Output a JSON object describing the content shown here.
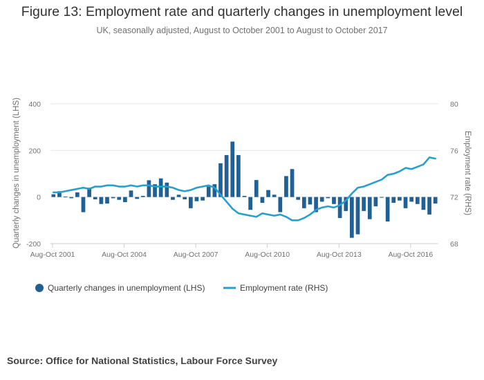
{
  "colors": {
    "bars": "#206095",
    "line": "#27a0cc",
    "grid": "#e6e6e6",
    "text": "#707071"
  },
  "chart_data": {
    "type": "bar+line",
    "title": "Figure 13: Employment rate and quarterly changes in unemployment level",
    "subtitle": "UK, seasonally adjusted, August to October 2001 to August to October 2017",
    "ylabel_left": "Quarterly changes in unemployment (LHS)",
    "ylabel_right": "Employment rate (RHS)",
    "ylim_left": [
      -200,
      400
    ],
    "ylim_right": [
      68,
      80
    ],
    "yticks_left": [
      "400",
      "200",
      "0",
      "-200"
    ],
    "yticks_right": [
      "80",
      "76",
      "72",
      "68"
    ],
    "xtick_labels": [
      "Aug-Oct 2001",
      "Aug-Oct 2004",
      "Aug-Oct 2007",
      "Aug-Oct 2010",
      "Aug-Oct 2013",
      "Aug-Oct 2016"
    ],
    "xtick_indices": [
      0,
      12,
      24,
      36,
      48,
      60
    ],
    "n_periods": 65,
    "series": [
      {
        "name": "Quarterly changes in unemployment (LHS)",
        "type": "bar",
        "values": [
          12,
          25,
          2,
          -5,
          20,
          -65,
          40,
          -10,
          -30,
          -28,
          -5,
          -12,
          -22,
          28,
          -8,
          5,
          72,
          55,
          80,
          62,
          -12,
          10,
          -10,
          -48,
          -18,
          -15,
          45,
          55,
          145,
          180,
          238,
          180,
          5,
          -55,
          73,
          -25,
          30,
          10,
          -65,
          90,
          120,
          -12,
          -48,
          -32,
          -65,
          -20,
          -5,
          -30,
          -90,
          -60,
          -175,
          -160,
          -60,
          -95,
          -40,
          0,
          -105,
          -25,
          -15,
          -48,
          -20,
          -30,
          -55,
          -75,
          -28
        ]
      },
      {
        "name": "Employment rate (RHS)",
        "type": "line",
        "values": [
          72.4,
          72.4,
          72.5,
          72.6,
          72.7,
          72.8,
          72.7,
          72.9,
          72.9,
          73.0,
          73.0,
          72.9,
          72.9,
          73.0,
          72.9,
          73.0,
          73.0,
          72.9,
          72.9,
          72.9,
          72.8,
          72.6,
          72.5,
          72.6,
          72.8,
          72.9,
          73.0,
          72.8,
          72.2,
          71.6,
          71.0,
          70.6,
          70.5,
          70.4,
          70.3,
          70.6,
          70.5,
          70.4,
          70.5,
          70.3,
          70.0,
          70.0,
          70.2,
          70.5,
          70.9,
          71.1,
          71.2,
          71.1,
          71.3,
          71.7,
          72.3,
          72.8,
          72.9,
          73.1,
          73.3,
          73.5,
          73.9,
          74.0,
          74.2,
          74.5,
          74.4,
          74.6,
          74.8,
          75.4,
          75.3
        ]
      }
    ]
  },
  "source": "Source: Office for National Statistics, Labour Force Survey"
}
